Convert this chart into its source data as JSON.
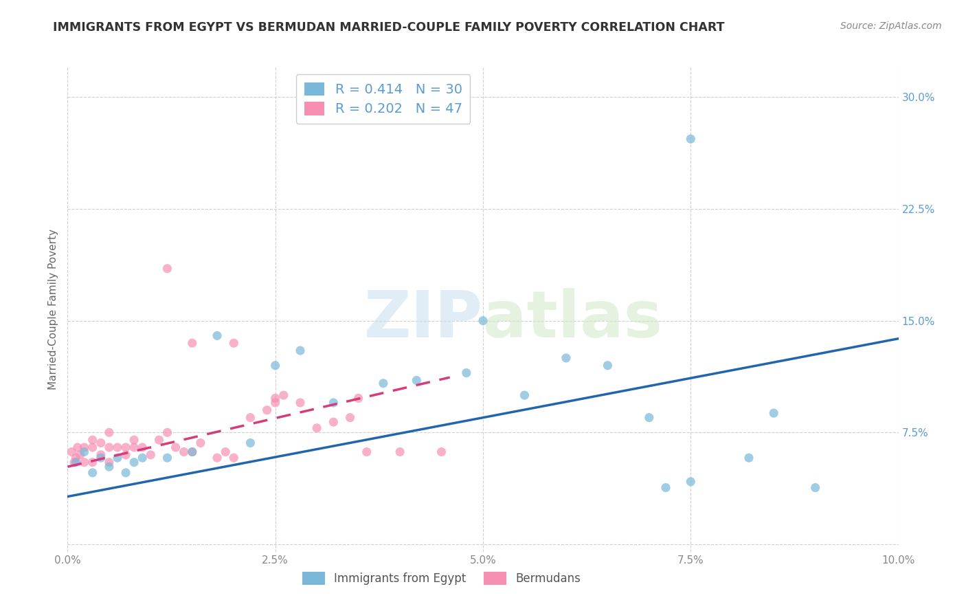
{
  "title": "IMMIGRANTS FROM EGYPT VS BERMUDAN MARRIED-COUPLE FAMILY POVERTY CORRELATION CHART",
  "source": "Source: ZipAtlas.com",
  "ylabel": "Married-Couple Family Poverty",
  "xlim": [
    0.0,
    0.1
  ],
  "ylim": [
    -0.005,
    0.32
  ],
  "xticks": [
    0.0,
    0.025,
    0.05,
    0.075,
    0.1
  ],
  "xtick_labels": [
    "0.0%",
    "2.5%",
    "5.0%",
    "7.5%",
    "10.0%"
  ],
  "yticks": [
    0.0,
    0.075,
    0.15,
    0.225,
    0.3
  ],
  "ytick_labels": [
    "",
    "7.5%",
    "15.0%",
    "22.5%",
    "30.0%"
  ],
  "watermark_zip": "ZIP",
  "watermark_atlas": "atlas",
  "legend_label_blue": "R = 0.414   N = 30",
  "legend_label_pink": "R = 0.202   N = 47",
  "legend_label_blue_bottom": "Immigrants from Egypt",
  "legend_label_pink_bottom": "Bermudans",
  "blue_scatter_x": [
    0.001,
    0.002,
    0.003,
    0.004,
    0.005,
    0.006,
    0.007,
    0.008,
    0.009,
    0.012,
    0.015,
    0.018,
    0.022,
    0.025,
    0.028,
    0.032,
    0.038,
    0.042,
    0.048,
    0.05,
    0.055,
    0.06,
    0.065,
    0.07,
    0.072,
    0.075,
    0.082,
    0.085,
    0.09,
    0.075
  ],
  "blue_scatter_y": [
    0.055,
    0.062,
    0.048,
    0.058,
    0.052,
    0.058,
    0.048,
    0.055,
    0.058,
    0.058,
    0.062,
    0.14,
    0.068,
    0.12,
    0.13,
    0.095,
    0.108,
    0.11,
    0.115,
    0.15,
    0.1,
    0.125,
    0.12,
    0.085,
    0.038,
    0.042,
    0.058,
    0.088,
    0.038,
    0.272
  ],
  "pink_scatter_x": [
    0.0005,
    0.0008,
    0.001,
    0.0012,
    0.0015,
    0.002,
    0.002,
    0.003,
    0.003,
    0.003,
    0.004,
    0.004,
    0.005,
    0.005,
    0.005,
    0.006,
    0.007,
    0.007,
    0.008,
    0.008,
    0.009,
    0.01,
    0.011,
    0.012,
    0.013,
    0.014,
    0.015,
    0.016,
    0.018,
    0.019,
    0.02,
    0.022,
    0.024,
    0.025,
    0.026,
    0.028,
    0.03,
    0.032,
    0.034,
    0.036,
    0.04,
    0.045,
    0.012,
    0.015,
    0.02,
    0.025,
    0.035
  ],
  "pink_scatter_y": [
    0.062,
    0.055,
    0.058,
    0.065,
    0.06,
    0.055,
    0.065,
    0.055,
    0.065,
    0.07,
    0.06,
    0.068,
    0.055,
    0.065,
    0.075,
    0.065,
    0.06,
    0.065,
    0.065,
    0.07,
    0.065,
    0.06,
    0.07,
    0.075,
    0.065,
    0.062,
    0.062,
    0.068,
    0.058,
    0.062,
    0.058,
    0.085,
    0.09,
    0.095,
    0.1,
    0.095,
    0.078,
    0.082,
    0.085,
    0.062,
    0.062,
    0.062,
    0.185,
    0.135,
    0.135,
    0.098,
    0.098
  ],
  "blue_line_x": [
    0.0,
    0.1
  ],
  "blue_line_y": [
    0.032,
    0.138
  ],
  "pink_line_x": [
    0.0,
    0.046
  ],
  "pink_line_y": [
    0.052,
    0.112
  ],
  "scatter_color_blue": "#7ab8d9",
  "scatter_color_pink": "#f78fb3",
  "line_color_blue": "#2166ac",
  "line_color_pink": "#d63b7a",
  "background_color": "#ffffff",
  "grid_color": "#d0d0d0",
  "title_color": "#333333",
  "source_color": "#888888",
  "ylabel_color": "#666666",
  "axis_label_color": "#888888",
  "yaxis_tick_color": "#5b9bd5"
}
